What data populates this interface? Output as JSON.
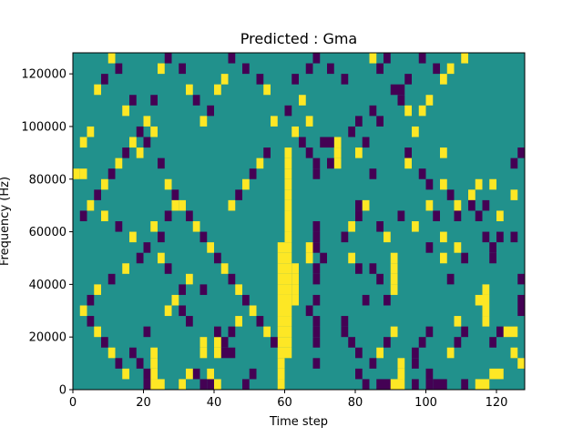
{
  "chart_data": {
    "type": "heatmap",
    "title": "Predicted : Gma",
    "xlabel": "Time step",
    "ylabel": "Frequency (Hz)",
    "xlim": [
      0,
      128
    ],
    "ylim": [
      0,
      128000
    ],
    "x_ticks": [
      {
        "value": 0,
        "label": "0"
      },
      {
        "value": 20,
        "label": "20"
      },
      {
        "value": 40,
        "label": "40"
      },
      {
        "value": 60,
        "label": "60"
      },
      {
        "value": 80,
        "label": "80"
      },
      {
        "value": 100,
        "label": "100"
      },
      {
        "value": 120,
        "label": "120"
      }
    ],
    "y_ticks": [
      {
        "value": 0,
        "label": "0"
      },
      {
        "value": 20000,
        "label": "20000"
      },
      {
        "value": 40000,
        "label": "40000"
      },
      {
        "value": 60000,
        "label": "60000"
      },
      {
        "value": 80000,
        "label": "80000"
      },
      {
        "value": 100000,
        "label": "100000"
      },
      {
        "value": 120000,
        "label": "120000"
      }
    ],
    "grid": false,
    "colors": {
      "low": "#440154",
      "mid": "#21918c",
      "high": "#fde725"
    },
    "cell_height": 4000,
    "background_value": "mid",
    "cells": [
      [
        58,
        0,
        "high"
      ],
      [
        58,
        4000,
        "high"
      ],
      [
        58,
        8000,
        "high"
      ],
      [
        58,
        12000,
        "high"
      ],
      [
        58,
        16000,
        "high"
      ],
      [
        58,
        20000,
        "high"
      ],
      [
        58,
        24000,
        "high"
      ],
      [
        58,
        28000,
        "high"
      ],
      [
        58,
        32000,
        "high"
      ],
      [
        58,
        36000,
        "high"
      ],
      [
        58,
        40000,
        "high"
      ],
      [
        58,
        44000,
        "high"
      ],
      [
        58,
        48000,
        "high"
      ],
      [
        58,
        52000,
        "high"
      ],
      [
        60,
        12000,
        "high"
      ],
      [
        60,
        16000,
        "high"
      ],
      [
        60,
        20000,
        "high"
      ],
      [
        60,
        24000,
        "high"
      ],
      [
        60,
        28000,
        "high"
      ],
      [
        60,
        32000,
        "high"
      ],
      [
        60,
        36000,
        "high"
      ],
      [
        60,
        40000,
        "high"
      ],
      [
        60,
        44000,
        "high"
      ],
      [
        60,
        48000,
        "high"
      ],
      [
        60,
        52000,
        "high"
      ],
      [
        60,
        56000,
        "high"
      ],
      [
        60,
        60000,
        "high"
      ],
      [
        60,
        64000,
        "high"
      ],
      [
        60,
        68000,
        "high"
      ],
      [
        60,
        72000,
        "high"
      ],
      [
        60,
        76000,
        "high"
      ],
      [
        60,
        80000,
        "high"
      ],
      [
        60,
        84000,
        "high"
      ],
      [
        60,
        88000,
        "high"
      ],
      [
        62,
        32000,
        "high"
      ],
      [
        62,
        36000,
        "high"
      ],
      [
        62,
        40000,
        "high"
      ],
      [
        62,
        44000,
        "high"
      ],
      [
        66,
        48000,
        "high"
      ],
      [
        66,
        52000,
        "high"
      ],
      [
        74,
        84000,
        "high"
      ],
      [
        74,
        88000,
        "high"
      ],
      [
        74,
        92000,
        "high"
      ],
      [
        66,
        88000,
        "low"
      ],
      [
        68,
        80000,
        "low"
      ],
      [
        68,
        84000,
        "low"
      ],
      [
        68,
        60000,
        "low"
      ],
      [
        68,
        56000,
        "low"
      ],
      [
        68,
        52000,
        "low"
      ],
      [
        70,
        48000,
        "low"
      ],
      [
        68,
        44000,
        "low"
      ],
      [
        68,
        40000,
        "low"
      ],
      [
        68,
        32000,
        "low"
      ],
      [
        66,
        28000,
        "low"
      ],
      [
        68,
        24000,
        "low"
      ],
      [
        68,
        20000,
        "low"
      ],
      [
        68,
        16000,
        "low"
      ],
      [
        68,
        8000,
        "low"
      ],
      [
        72,
        84000,
        "low"
      ],
      [
        72,
        92000,
        "low"
      ],
      [
        70,
        92000,
        "low"
      ],
      [
        44,
        12000,
        "low"
      ],
      [
        42,
        16000,
        "low"
      ],
      [
        42,
        12000,
        "low"
      ],
      [
        34,
        4000,
        "low"
      ],
      [
        36,
        0,
        "low"
      ],
      [
        38,
        0,
        "low"
      ],
      [
        40,
        0,
        "high"
      ],
      [
        38,
        4000,
        "high"
      ],
      [
        48,
        0,
        "low"
      ],
      [
        50,
        4000,
        "low"
      ],
      [
        2,
        80000,
        "high"
      ],
      [
        0,
        80000,
        "high"
      ],
      [
        32,
        4000,
        "high"
      ],
      [
        30,
        0,
        "high"
      ],
      [
        22,
        0,
        "high"
      ],
      [
        22,
        4000,
        "high"
      ],
      [
        22,
        8000,
        "high"
      ],
      [
        22,
        12000,
        "high"
      ],
      [
        20,
        0,
        "low"
      ],
      [
        20,
        4000,
        "low"
      ],
      [
        24,
        0,
        "high"
      ],
      [
        16,
        12000,
        "low"
      ],
      [
        18,
        8000,
        "low"
      ],
      [
        20,
        20000,
        "low"
      ],
      [
        36,
        16000,
        "high"
      ],
      [
        36,
        12000,
        "high"
      ],
      [
        40,
        12000,
        "high"
      ],
      [
        40,
        16000,
        "high"
      ],
      [
        30,
        28000,
        "low"
      ],
      [
        32,
        24000,
        "low"
      ],
      [
        36,
        36000,
        "low"
      ],
      [
        40,
        20000,
        "low"
      ],
      [
        44,
        20000,
        "low"
      ],
      [
        46,
        24000,
        "high"
      ],
      [
        80,
        4000,
        "low"
      ],
      [
        82,
        0,
        "low"
      ],
      [
        86,
        0,
        "low"
      ],
      [
        88,
        0,
        "low"
      ],
      [
        90,
        0,
        "high"
      ],
      [
        92,
        0,
        "high"
      ],
      [
        92,
        4000,
        "high"
      ],
      [
        92,
        8000,
        "high"
      ],
      [
        96,
        0,
        "low"
      ],
      [
        100,
        0,
        "low"
      ],
      [
        100,
        4000,
        "low"
      ],
      [
        102,
        0,
        "low"
      ],
      [
        104,
        0,
        "low"
      ],
      [
        110,
        0,
        "low"
      ],
      [
        114,
        0,
        "high"
      ],
      [
        116,
        0,
        "high"
      ],
      [
        118,
        4000,
        "high"
      ],
      [
        120,
        4000,
        "high"
      ],
      [
        118,
        16000,
        "low"
      ],
      [
        120,
        20000,
        "low"
      ],
      [
        122,
        20000,
        "high"
      ],
      [
        124,
        20000,
        "high"
      ],
      [
        116,
        24000,
        "high"
      ],
      [
        116,
        28000,
        "high"
      ],
      [
        116,
        32000,
        "high"
      ],
      [
        116,
        36000,
        "high"
      ],
      [
        124,
        12000,
        "high"
      ],
      [
        126,
        8000,
        "high"
      ],
      [
        126,
        28000,
        "low"
      ],
      [
        126,
        32000,
        "low"
      ],
      [
        118,
        52000,
        "low"
      ],
      [
        118,
        48000,
        "low"
      ],
      [
        120,
        56000,
        "low"
      ],
      [
        108,
        16000,
        "low"
      ],
      [
        110,
        20000,
        "low"
      ],
      [
        108,
        24000,
        "high"
      ],
      [
        106,
        12000,
        "high"
      ],
      [
        96,
        12000,
        "low"
      ],
      [
        96,
        8000,
        "low"
      ],
      [
        98,
        16000,
        "low"
      ],
      [
        100,
        20000,
        "low"
      ],
      [
        90,
        20000,
        "high"
      ],
      [
        88,
        16000,
        "low"
      ],
      [
        86,
        12000,
        "high"
      ],
      [
        84,
        8000,
        "low"
      ],
      [
        80,
        12000,
        "low"
      ],
      [
        78,
        16000,
        "low"
      ],
      [
        76,
        20000,
        "low"
      ],
      [
        76,
        24000,
        "low"
      ],
      [
        90,
        36000,
        "high"
      ],
      [
        90,
        40000,
        "high"
      ],
      [
        90,
        44000,
        "high"
      ],
      [
        90,
        48000,
        "high"
      ],
      [
        86,
        40000,
        "low"
      ],
      [
        88,
        32000,
        "low"
      ],
      [
        82,
        32000,
        "low"
      ],
      [
        84,
        44000,
        "low"
      ],
      [
        86,
        60000,
        "low"
      ],
      [
        88,
        56000,
        "high"
      ],
      [
        92,
        64000,
        "low"
      ],
      [
        96,
        60000,
        "high"
      ],
      [
        100,
        52000,
        "low"
      ],
      [
        104,
        48000,
        "high"
      ],
      [
        106,
        40000,
        "low"
      ],
      [
        104,
        56000,
        "high"
      ],
      [
        108,
        52000,
        "high"
      ],
      [
        110,
        48000,
        "low"
      ],
      [
        114,
        32000,
        "high"
      ],
      [
        116,
        56000,
        "low"
      ],
      [
        124,
        56000,
        "low"
      ],
      [
        126,
        40000,
        "low"
      ],
      [
        78,
        48000,
        "high"
      ],
      [
        76,
        56000,
        "low"
      ],
      [
        78,
        60000,
        "high"
      ],
      [
        80,
        44000,
        "low"
      ],
      [
        80,
        64000,
        "low"
      ],
      [
        80,
        68000,
        "low"
      ],
      [
        82,
        68000,
        "high"
      ],
      [
        84,
        80000,
        "low"
      ],
      [
        80,
        88000,
        "high"
      ],
      [
        82,
        92000,
        "low"
      ],
      [
        78,
        96000,
        "low"
      ],
      [
        80,
        100000,
        "low"
      ],
      [
        84,
        104000,
        "low"
      ],
      [
        86,
        100000,
        "low"
      ],
      [
        90,
        112000,
        "low"
      ],
      [
        92,
        108000,
        "low"
      ],
      [
        94,
        88000,
        "low"
      ],
      [
        94,
        84000,
        "high"
      ],
      [
        98,
        80000,
        "low"
      ],
      [
        100,
        76000,
        "low"
      ],
      [
        100,
        68000,
        "high"
      ],
      [
        102,
        64000,
        "low"
      ],
      [
        104,
        76000,
        "high"
      ],
      [
        106,
        72000,
        "low"
      ],
      [
        108,
        68000,
        "high"
      ],
      [
        108,
        64000,
        "low"
      ],
      [
        112,
        72000,
        "high"
      ],
      [
        114,
        76000,
        "high"
      ],
      [
        112,
        68000,
        "low"
      ],
      [
        114,
        64000,
        "low"
      ],
      [
        116,
        68000,
        "low"
      ],
      [
        118,
        76000,
        "high"
      ],
      [
        120,
        64000,
        "high"
      ],
      [
        124,
        84000,
        "low"
      ],
      [
        126,
        88000,
        "low"
      ],
      [
        124,
        72000,
        "high"
      ],
      [
        104,
        88000,
        "high"
      ],
      [
        96,
        96000,
        "high"
      ],
      [
        98,
        104000,
        "high"
      ],
      [
        100,
        108000,
        "high"
      ],
      [
        104,
        116000,
        "high"
      ],
      [
        106,
        120000,
        "high"
      ],
      [
        110,
        124000,
        "high"
      ],
      [
        92,
        112000,
        "low"
      ],
      [
        94,
        104000,
        "high"
      ],
      [
        88,
        124000,
        "low"
      ],
      [
        86,
        120000,
        "low"
      ],
      [
        94,
        116000,
        "low"
      ],
      [
        98,
        124000,
        "low"
      ],
      [
        102,
        120000,
        "low"
      ],
      [
        84,
        124000,
        "high"
      ],
      [
        76,
        116000,
        "low"
      ],
      [
        72,
        120000,
        "low"
      ],
      [
        68,
        124000,
        "low"
      ],
      [
        66,
        120000,
        "low"
      ],
      [
        64,
        108000,
        "high"
      ],
      [
        60,
        104000,
        "low"
      ],
      [
        56,
        100000,
        "high"
      ],
      [
        54,
        112000,
        "high"
      ],
      [
        52,
        116000,
        "low"
      ],
      [
        48,
        120000,
        "low"
      ],
      [
        44,
        124000,
        "low"
      ],
      [
        42,
        116000,
        "high"
      ],
      [
        40,
        112000,
        "high"
      ],
      [
        38,
        104000,
        "low"
      ],
      [
        36,
        100000,
        "high"
      ],
      [
        34,
        108000,
        "low"
      ],
      [
        32,
        112000,
        "high"
      ],
      [
        30,
        120000,
        "low"
      ],
      [
        26,
        124000,
        "low"
      ],
      [
        24,
        120000,
        "high"
      ],
      [
        22,
        108000,
        "low"
      ],
      [
        20,
        100000,
        "high"
      ],
      [
        18,
        96000,
        "low"
      ],
      [
        16,
        92000,
        "high"
      ],
      [
        14,
        88000,
        "low"
      ],
      [
        12,
        84000,
        "high"
      ],
      [
        10,
        80000,
        "low"
      ],
      [
        8,
        76000,
        "high"
      ],
      [
        6,
        72000,
        "low"
      ],
      [
        4,
        68000,
        "high"
      ],
      [
        2,
        64000,
        "low"
      ],
      [
        2,
        92000,
        "high"
      ],
      [
        4,
        96000,
        "high"
      ],
      [
        6,
        112000,
        "high"
      ],
      [
        8,
        116000,
        "low"
      ],
      [
        10,
        124000,
        "high"
      ],
      [
        12,
        120000,
        "low"
      ],
      [
        14,
        104000,
        "high"
      ],
      [
        16,
        108000,
        "low"
      ],
      [
        18,
        88000,
        "high"
      ],
      [
        20,
        92000,
        "low"
      ],
      [
        22,
        96000,
        "high"
      ],
      [
        24,
        84000,
        "low"
      ],
      [
        26,
        76000,
        "high"
      ],
      [
        28,
        72000,
        "low"
      ],
      [
        30,
        68000,
        "high"
      ],
      [
        32,
        64000,
        "low"
      ],
      [
        34,
        60000,
        "high"
      ],
      [
        36,
        56000,
        "low"
      ],
      [
        38,
        52000,
        "high"
      ],
      [
        40,
        48000,
        "low"
      ],
      [
        42,
        44000,
        "high"
      ],
      [
        44,
        40000,
        "low"
      ],
      [
        46,
        36000,
        "high"
      ],
      [
        48,
        32000,
        "low"
      ],
      [
        50,
        28000,
        "high"
      ],
      [
        52,
        24000,
        "low"
      ],
      [
        54,
        20000,
        "high"
      ],
      [
        56,
        16000,
        "low"
      ],
      [
        26,
        64000,
        "low"
      ],
      [
        28,
        68000,
        "high"
      ],
      [
        24,
        56000,
        "low"
      ],
      [
        22,
        60000,
        "high"
      ],
      [
        18,
        48000,
        "low"
      ],
      [
        14,
        44000,
        "high"
      ],
      [
        10,
        40000,
        "low"
      ],
      [
        6,
        36000,
        "high"
      ],
      [
        4,
        32000,
        "low"
      ],
      [
        2,
        28000,
        "high"
      ],
      [
        4,
        24000,
        "low"
      ],
      [
        6,
        20000,
        "high"
      ],
      [
        8,
        16000,
        "low"
      ],
      [
        10,
        12000,
        "high"
      ],
      [
        12,
        8000,
        "low"
      ],
      [
        14,
        4000,
        "high"
      ],
      [
        26,
        28000,
        "high"
      ],
      [
        28,
        32000,
        "high"
      ],
      [
        30,
        36000,
        "low"
      ],
      [
        32,
        40000,
        "high"
      ],
      [
        26,
        44000,
        "low"
      ],
      [
        24,
        48000,
        "high"
      ],
      [
        20,
        52000,
        "low"
      ],
      [
        16,
        56000,
        "high"
      ],
      [
        12,
        60000,
        "low"
      ],
      [
        8,
        64000,
        "high"
      ],
      [
        44,
        68000,
        "high"
      ],
      [
        46,
        72000,
        "low"
      ],
      [
        48,
        76000,
        "high"
      ],
      [
        50,
        80000,
        "low"
      ],
      [
        52,
        84000,
        "high"
      ],
      [
        54,
        88000,
        "low"
      ],
      [
        62,
        96000,
        "high"
      ],
      [
        64,
        92000,
        "low"
      ],
      [
        66,
        100000,
        "high"
      ],
      [
        62,
        116000,
        "low"
      ]
    ]
  }
}
